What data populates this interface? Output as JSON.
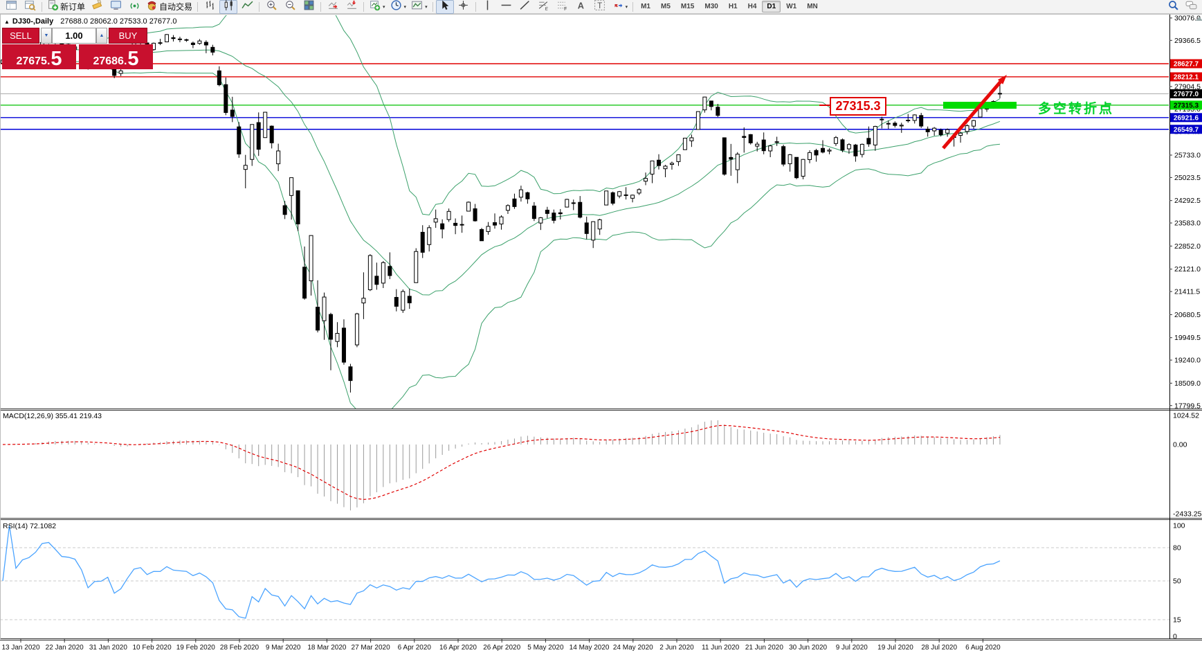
{
  "toolbar": {
    "items": [
      {
        "name": "chart-window-icon"
      },
      {
        "name": "market-watch-icon"
      },
      {
        "sep": true
      },
      {
        "name": "new-order-button",
        "icon": "new-order-icon",
        "label": "新订单"
      },
      {
        "name": "highlighter-icon"
      },
      {
        "name": "terminal-icon"
      },
      {
        "name": "signals-icon"
      },
      {
        "name": "auto-trading-button",
        "icon": "auto-trading-icon",
        "label": "自动交易"
      },
      {
        "sep": true
      },
      {
        "name": "bar-chart-button",
        "icon": "bar-chart-icon"
      },
      {
        "name": "candlestick-chart-button",
        "icon": "candlestick-chart-icon",
        "active": true
      },
      {
        "name": "line-chart-button",
        "icon": "line-chart-icon"
      },
      {
        "sep": true
      },
      {
        "name": "zoom-in-button",
        "icon": "zoom-in-icon"
      },
      {
        "name": "zoom-out-button",
        "icon": "zoom-out-icon"
      },
      {
        "name": "tile-windows-button",
        "icon": "tile-windows-icon"
      },
      {
        "sep": true
      },
      {
        "name": "auto-scroll-button",
        "icon": "auto-scroll-icon"
      },
      {
        "name": "chart-shift-button",
        "icon": "chart-shift-icon"
      },
      {
        "sep": true
      },
      {
        "name": "new-chart-button",
        "icon": "new-chart-icon",
        "caret": true
      },
      {
        "name": "periods-button",
        "icon": "clock-icon",
        "caret": true
      },
      {
        "name": "templates-button",
        "icon": "templates-icon",
        "caret": true
      },
      {
        "sep": true
      },
      {
        "name": "cursor-button",
        "icon": "cursor-icon",
        "active": true
      },
      {
        "name": "crosshair-button",
        "icon": "crosshair-icon"
      },
      {
        "sep": true
      },
      {
        "name": "vertical-line-button",
        "icon": "vertical-line-icon"
      },
      {
        "name": "horizontal-line-button",
        "icon": "horizontal-line-icon"
      },
      {
        "name": "trendline-button",
        "icon": "trendline-icon"
      },
      {
        "name": "fibonacci-button",
        "icon": "fibonacci-icon"
      },
      {
        "name": "channel-button",
        "icon": "channel-icon"
      },
      {
        "name": "text-button",
        "icon": "text-icon"
      },
      {
        "name": "text-label-button",
        "icon": "text-label-icon"
      },
      {
        "name": "arrows-button",
        "icon": "arrows-icon",
        "caret": true
      },
      {
        "sep": true
      }
    ],
    "timeframes": [
      {
        "label": "M1"
      },
      {
        "label": "M5"
      },
      {
        "label": "M15"
      },
      {
        "label": "M30"
      },
      {
        "label": "H1"
      },
      {
        "label": "H4"
      },
      {
        "label": "D1",
        "active": true
      },
      {
        "label": "W1"
      },
      {
        "label": "MN"
      }
    ],
    "right_icons": [
      {
        "name": "search-icon"
      },
      {
        "name": "chat-icon"
      }
    ]
  },
  "chart_header": {
    "collapse_marker": "▲",
    "symbol_period": "DJ30-,Daily",
    "ohlc": "27688.0 28062.0 27533.0 27677.0"
  },
  "trade_panel": {
    "sell_label": "SELL",
    "buy_label": "BUY",
    "volume": "1.00",
    "sell_price_main": "27675.",
    "sell_price_pip": "5",
    "buy_price_main": "27686.",
    "buy_price_pip": "5"
  },
  "annotations": {
    "callout_price": "27315.3",
    "cn_note": "多空转折点",
    "green_bar_color": "#00dc00",
    "arrow_color": "#e60b0b"
  },
  "price_axis": {
    "ticks": [
      "30076.0",
      "29366.5",
      "27904.5",
      "27195.0",
      "26484.0",
      "25733.0",
      "25023.5",
      "24292.5",
      "23583.0",
      "22852.0",
      "22121.0",
      "21411.5",
      "20680.5",
      "19949.5",
      "19240.0",
      "18509.0",
      "17799.5"
    ]
  },
  "price_lines": [
    {
      "value": "28627.7",
      "color": "#e00000",
      "width": 1.4,
      "label_bg": "#e00000",
      "label_fg": "#ffffff"
    },
    {
      "value": "28212.1",
      "color": "#e00000",
      "width": 1.4,
      "label_bg": "#e00000",
      "label_fg": "#ffffff"
    },
    {
      "value": "27677.0",
      "color": "#a8a8a8",
      "width": 1,
      "label_bg": "#000000",
      "label_fg": "#ffffff"
    },
    {
      "value": "27315.3",
      "color": "#00c000",
      "width": 1.2,
      "label_bg": "#00dc00",
      "label_fg": "#000000"
    },
    {
      "value": "26921.6",
      "color": "#0000d8",
      "width": 1.4,
      "label_bg": "#0000c8",
      "label_fg": "#ffffff"
    },
    {
      "value": "26549.7",
      "color": "#0000d8",
      "width": 1.4,
      "label_bg": "#0000c8",
      "label_fg": "#ffffff"
    }
  ],
  "macd_panel": {
    "label": "MACD(12,26,9)",
    "values": "355.41 219.43",
    "axis": [
      "1024.52",
      "0.00",
      "-2433.25"
    ]
  },
  "rsi_panel": {
    "label": "RSI(14)",
    "value": "72.1082",
    "axis": [
      "100",
      "80",
      "50",
      "15",
      "0"
    ],
    "levels": [
      80,
      50,
      15
    ]
  },
  "date_axis": [
    "13 Jan 2020",
    "22 Jan 2020",
    "31 Jan 2020",
    "10 Feb 2020",
    "19 Feb 2020",
    "28 Feb 2020",
    "9 Mar 2020",
    "18 Mar 2020",
    "27 Mar 2020",
    "6 Apr 2020",
    "16 Apr 2020",
    "26 Apr 2020",
    "5 May 2020",
    "14 May 2020",
    "24 May 2020",
    "2 Jun 2020",
    "11 Jun 2020",
    "21 Jun 2020",
    "30 Jun 2020",
    "9 Jul 2020",
    "19 Jul 2020",
    "28 Jul 2020",
    "6 Aug 2020"
  ],
  "colors": {
    "candle_up_fill": "#ffffff",
    "candle_down_fill": "#000000",
    "candle_stroke": "#000000",
    "bollinger": "#3aa06a",
    "macd_histogram": "#9a9a9a",
    "macd_signal": "#e00000",
    "rsi_line": "#4aa3ff",
    "panel_border": "#333333"
  },
  "chart_data": {
    "type": "candlestick",
    "symbol": "DJ30-",
    "period": "Daily",
    "price_axis_top": "30076.0",
    "price_axis_bottom": "17799.5",
    "indicators": {
      "bollinger": {
        "period": 20,
        "deviation": 2
      },
      "macd": {
        "fast": 12,
        "slow": 26,
        "signal": 9,
        "current": "355.41 219.43"
      },
      "rsi": {
        "period": 14,
        "current": "72.1082"
      }
    },
    "candles": [
      [
        28639,
        28866,
        28522,
        28745
      ],
      [
        28771,
        28988,
        28740,
        28957
      ],
      [
        28962,
        29009,
        28789,
        28824
      ],
      [
        28851,
        28915,
        28804,
        28907
      ],
      [
        28906,
        29054,
        28844,
        28939
      ],
      [
        28925,
        29127,
        28897,
        29030
      ],
      [
        29066,
        29300,
        29056,
        29297
      ],
      [
        29313,
        29373,
        29250,
        29348
      ],
      [
        29330,
        29350,
        29244,
        29280
      ],
      [
        29269,
        29311,
        29094,
        29196
      ],
      [
        29239,
        29320,
        29138,
        29186
      ],
      [
        29087,
        29193,
        28966,
        29160
      ],
      [
        29190,
        29230,
        28843,
        28990
      ],
      [
        28679,
        28690,
        28440,
        28536
      ],
      [
        28594,
        28780,
        28528,
        28723
      ],
      [
        28752,
        28824,
        28647,
        28734
      ],
      [
        28640,
        28888,
        28550,
        28859
      ],
      [
        28813,
        28836,
        28169,
        28256
      ],
      [
        28319,
        28501,
        28236,
        28400
      ],
      [
        28597,
        28842,
        28560,
        28808
      ],
      [
        28969,
        29308,
        28950,
        29291
      ],
      [
        29323,
        29409,
        29223,
        29380
      ],
      [
        29286,
        29317,
        29056,
        29103
      ],
      [
        29073,
        29298,
        29042,
        29277
      ],
      [
        29293,
        29415,
        29217,
        29276
      ],
      [
        29320,
        29568,
        29307,
        29551
      ],
      [
        29452,
        29535,
        29331,
        29423
      ],
      [
        29411,
        29482,
        29307,
        29398
      ],
      [
        29390,
        29420,
        29320,
        29380
      ],
      [
        29282,
        29328,
        29120,
        29232
      ],
      [
        29269,
        29409,
        29230,
        29348
      ],
      [
        29306,
        29368,
        28960,
        29220
      ],
      [
        29147,
        29227,
        28892,
        28992
      ],
      [
        28402,
        28544,
        27912,
        27961
      ],
      [
        27965,
        28190,
        26998,
        27081
      ],
      [
        27159,
        27580,
        26778,
        26958
      ],
      [
        26627,
        26777,
        25647,
        25767
      ],
      [
        25280,
        25740,
        24681,
        25409
      ],
      [
        25596,
        26706,
        25391,
        26703
      ],
      [
        26763,
        27085,
        25707,
        25917
      ],
      [
        26287,
        27102,
        26286,
        27091
      ],
      [
        26651,
        26671,
        25943,
        26121
      ],
      [
        25457,
        26094,
        25226,
        25865
      ],
      [
        24132,
        24280,
        23707,
        23851
      ],
      [
        24453,
        25020,
        23690,
        25018
      ],
      [
        24604,
        24604,
        23328,
        23553
      ],
      [
        22184,
        22837,
        21154,
        21201
      ],
      [
        21751,
        23189,
        21285,
        23186
      ],
      [
        20917,
        21768,
        20116,
        20189
      ],
      [
        20487,
        21379,
        19882,
        21237
      ],
      [
        20686,
        20738,
        18917,
        19899
      ],
      [
        19830,
        20442,
        19649,
        20087
      ],
      [
        20254,
        20531,
        19094,
        19174
      ],
      [
        19028,
        19121,
        18213,
        18592
      ],
      [
        19722,
        20737,
        19649,
        20705
      ],
      [
        21050,
        22020,
        20538,
        21200
      ],
      [
        21468,
        22595,
        21427,
        22552
      ],
      [
        21898,
        22327,
        21469,
        21637
      ],
      [
        21678,
        22378,
        21522,
        22327
      ],
      [
        22208,
        22653,
        21805,
        21917
      ],
      [
        21227,
        21487,
        20784,
        20944
      ],
      [
        20819,
        21477,
        20735,
        21413
      ],
      [
        21262,
        21504,
        20863,
        21053
      ],
      [
        21693,
        22783,
        21693,
        22680
      ],
      [
        23289,
        23513,
        22473,
        22654
      ],
      [
        22898,
        23513,
        22680,
        23434
      ],
      [
        23610,
        24009,
        23428,
        23719
      ],
      [
        23558,
        23698,
        23096,
        23391
      ],
      [
        23690,
        24041,
        23616,
        23950
      ],
      [
        23575,
        23727,
        23228,
        23504
      ],
      [
        23526,
        23818,
        23273,
        23537
      ],
      [
        23957,
        24264,
        23957,
        24242
      ],
      [
        24034,
        24186,
        23628,
        23650
      ],
      [
        23376,
        23426,
        23018,
        23019
      ],
      [
        23311,
        23613,
        23211,
        23476
      ],
      [
        23594,
        23885,
        23404,
        23515
      ],
      [
        23550,
        23827,
        23371,
        23775
      ],
      [
        23984,
        24174,
        23870,
        24134
      ],
      [
        24344,
        24512,
        24029,
        24102
      ],
      [
        24399,
        24765,
        24261,
        24634
      ],
      [
        24543,
        24573,
        24193,
        24346
      ],
      [
        24121,
        24244,
        23645,
        23724
      ],
      [
        23581,
        23771,
        23361,
        23749
      ],
      [
        23990,
        24094,
        23733,
        23883
      ],
      [
        23899,
        24008,
        23571,
        23665
      ],
      [
        23906,
        24024,
        23693,
        23876
      ],
      [
        24086,
        24349,
        24086,
        24331
      ],
      [
        24218,
        24325,
        23991,
        24222
      ],
      [
        24237,
        24437,
        23728,
        23765
      ],
      [
        23586,
        23785,
        23069,
        23248
      ],
      [
        23040,
        23634,
        22790,
        23625
      ],
      [
        23392,
        23718,
        23206,
        23685
      ],
      [
        24152,
        24602,
        24152,
        24597
      ],
      [
        24542,
        24578,
        24145,
        24207
      ],
      [
        24436,
        24596,
        24366,
        24576
      ],
      [
        24470,
        24718,
        24326,
        24474
      ],
      [
        24366,
        24482,
        24236,
        24465
      ],
      [
        24530,
        24680,
        24470,
        24640
      ],
      [
        24907,
        25180,
        24780,
        24995
      ],
      [
        25130,
        25549,
        24844,
        25548
      ],
      [
        25573,
        25759,
        25277,
        25401
      ],
      [
        25301,
        25424,
        25032,
        25383
      ],
      [
        25437,
        25527,
        25272,
        25475
      ],
      [
        25526,
        25746,
        25391,
        25743
      ],
      [
        25905,
        26270,
        25905,
        26270
      ],
      [
        26184,
        26384,
        25992,
        26282
      ],
      [
        26545,
        27115,
        26545,
        27111
      ],
      [
        27165,
        27580,
        27077,
        27572
      ],
      [
        27447,
        27447,
        27151,
        27272
      ],
      [
        27251,
        27355,
        26938,
        26990
      ],
      [
        26282,
        26294,
        25082,
        25128
      ],
      [
        25659,
        26087,
        25078,
        25605
      ],
      [
        25270,
        25826,
        24843,
        25763
      ],
      [
        26326,
        26611,
        25811,
        26290
      ],
      [
        26383,
        26400,
        26068,
        26120
      ],
      [
        26016,
        26154,
        25848,
        26080
      ],
      [
        26213,
        26451,
        25759,
        25871
      ],
      [
        25865,
        26059,
        25667,
        26025
      ],
      [
        26155,
        26314,
        26022,
        26156
      ],
      [
        26003,
        26062,
        25376,
        25446
      ],
      [
        25458,
        25769,
        25209,
        25746
      ],
      [
        25662,
        25662,
        24971,
        25016
      ],
      [
        25063,
        25612,
        24966,
        25596
      ],
      [
        25590,
        25886,
        25475,
        25813
      ],
      [
        25880,
        25932,
        25524,
        25735
      ],
      [
        25946,
        26204,
        25787,
        25827
      ],
      [
        25860,
        25950,
        25760,
        25890
      ],
      [
        26100,
        26336,
        26022,
        26287
      ],
      [
        26218,
        26260,
        25824,
        25890
      ],
      [
        25931,
        26109,
        25773,
        26067
      ],
      [
        26053,
        26086,
        25523,
        25706
      ],
      [
        25754,
        26098,
        25658,
        26075
      ],
      [
        26263,
        26639,
        25994,
        26086
      ],
      [
        26053,
        26661,
        25869,
        26643
      ],
      [
        26855,
        26948,
        26575,
        26870
      ],
      [
        26737,
        26830,
        26560,
        26735
      ],
      [
        26745,
        26802,
        26605,
        26672
      ],
      [
        26655,
        26758,
        26438,
        26681
      ],
      [
        26831,
        27036,
        26762,
        26840
      ],
      [
        26830,
        27023,
        26733,
        27006
      ],
      [
        26987,
        27071,
        26591,
        26652
      ],
      [
        26557,
        26638,
        26317,
        26470
      ],
      [
        26500,
        26622,
        26346,
        26585
      ],
      [
        26525,
        26575,
        26323,
        26379
      ],
      [
        26430,
        26576,
        26314,
        26540
      ],
      [
        26296,
        26420,
        26003,
        26313
      ],
      [
        26357,
        26474,
        26127,
        26428
      ],
      [
        26480,
        26712,
        26388,
        26664
      ],
      [
        26650,
        26851,
        26565,
        26828
      ],
      [
        26938,
        27251,
        26938,
        27202
      ],
      [
        27190,
        27409,
        27103,
        27387
      ],
      [
        27354,
        27466,
        27201,
        27433
      ],
      [
        27688,
        28062,
        27533,
        27677
      ]
    ]
  }
}
